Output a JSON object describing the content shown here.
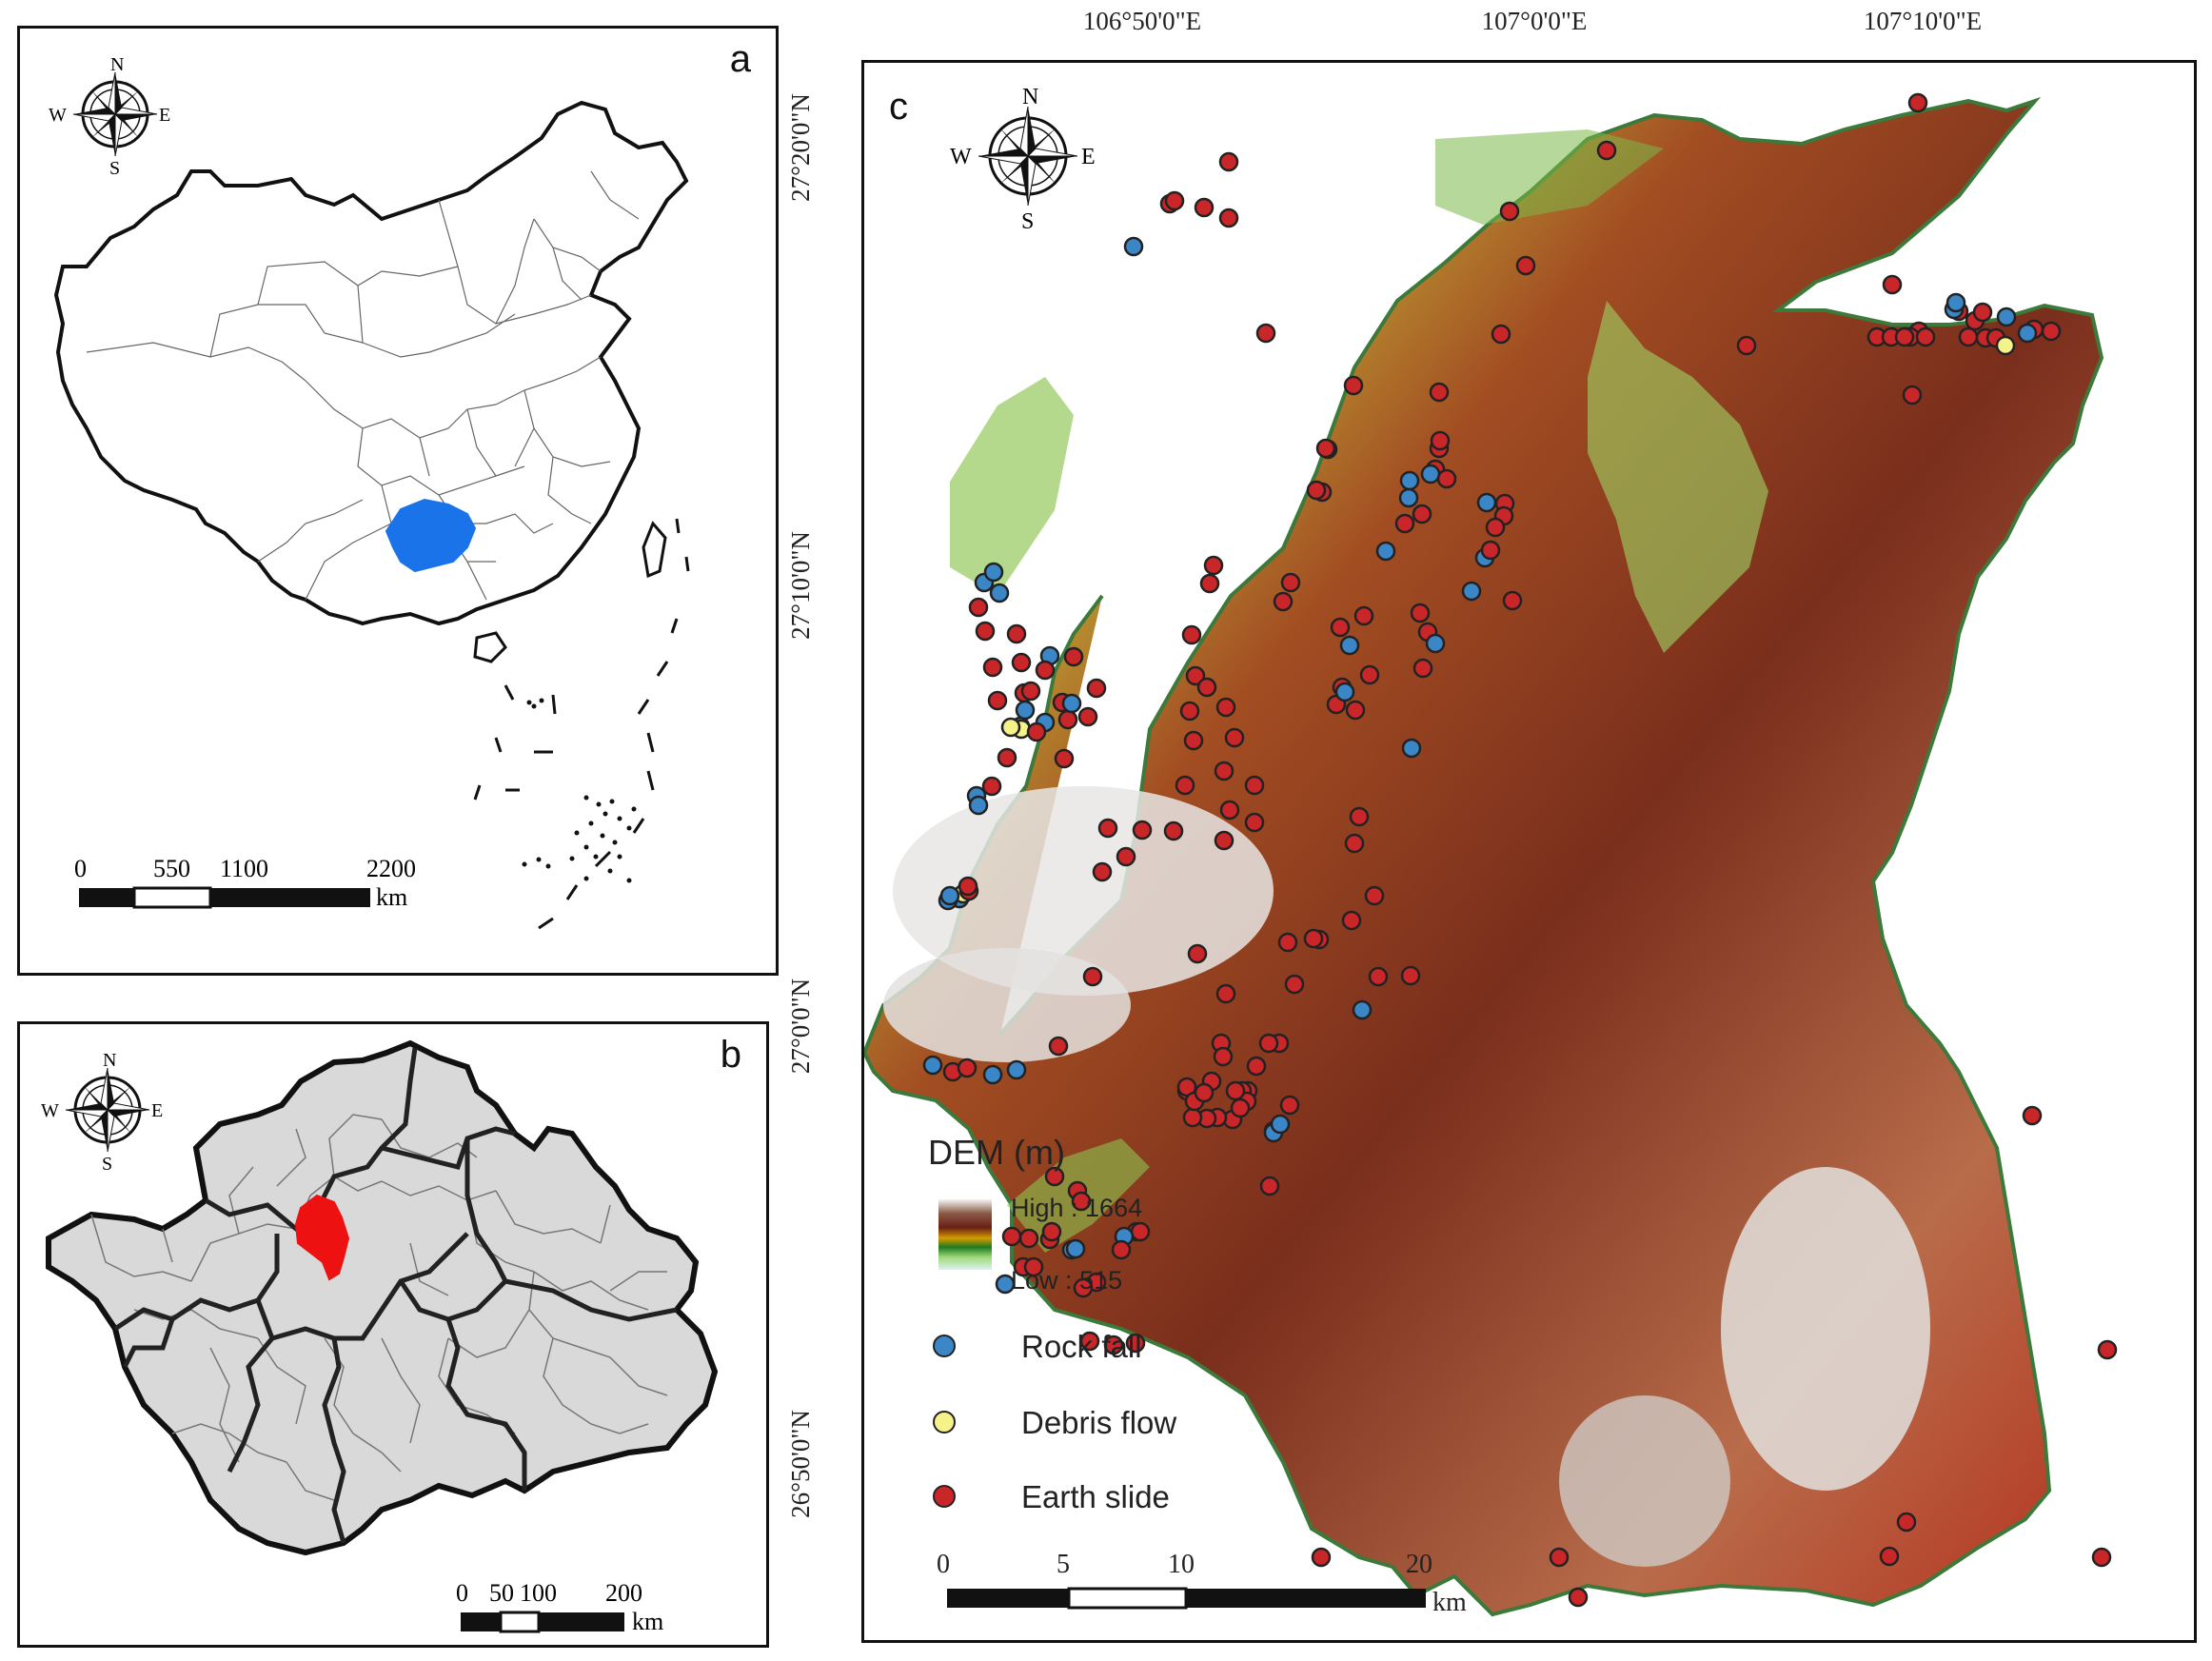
{
  "panels": {
    "a": {
      "label": "a",
      "compass": {
        "n": "N",
        "s": "S",
        "e": "E",
        "w": "W"
      },
      "scale": {
        "ticks": [
          "0",
          "550",
          "1100",
          "2200"
        ],
        "unit": "km"
      },
      "highlight_color": "#1a73e8"
    },
    "b": {
      "label": "b",
      "compass": {
        "n": "N",
        "s": "S",
        "e": "E",
        "w": "W"
      },
      "scale": {
        "ticks": [
          "0",
          "50",
          "100",
          "200"
        ],
        "unit": "km"
      },
      "highlight_color": "#ee1111",
      "fill_color": "#d9d9d9"
    },
    "c": {
      "label": "c",
      "compass": {
        "n": "N",
        "s": "S",
        "e": "E",
        "w": "W"
      },
      "top_coords": [
        "106°50'0\"E",
        "107°0'0\"E",
        "107°10'0\"E"
      ],
      "left_coords": [
        "27°20'0\"N",
        "27°10'0\"N",
        "27°0'0\"N",
        "26°50'0\"N"
      ],
      "legend": {
        "title": "DEM (m)",
        "high": "High : 1664",
        "low": "Low : 515",
        "items": [
          {
            "label": "Rock fall",
            "color": "#3b86c6"
          },
          {
            "label": "Debris flow",
            "color": "#f6f28a"
          },
          {
            "label": "Earth slide",
            "color": "#c9262a"
          }
        ]
      },
      "scale": {
        "ticks": [
          "0",
          "5",
          "10",
          "20"
        ],
        "unit": "km"
      }
    }
  }
}
